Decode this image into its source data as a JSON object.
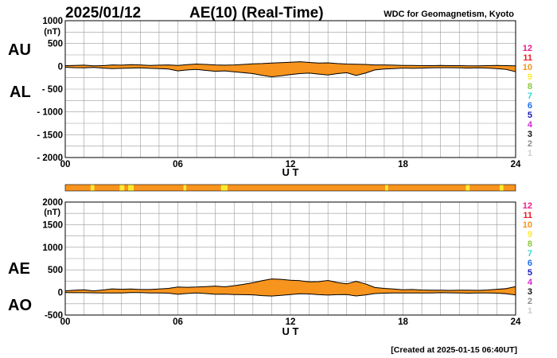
{
  "header": {
    "date": "2025/01/12",
    "title": "AE(10) (Real-Time)",
    "credit": "WDC for Geomagnetism, Kyoto"
  },
  "footer": {
    "created": "[Created at 2025-01-15 06:40UT]"
  },
  "palette": {
    "fill": "#f7941d",
    "grid": "#9a9a9a",
    "line": "#000000",
    "bar_yellow": "#ffe930",
    "bar_orange": "#f7941d"
  },
  "station_count_legend": [
    {
      "label": "12",
      "color": "#ee1d8c"
    },
    {
      "label": "11",
      "color": "#ee1c25"
    },
    {
      "label": "10",
      "color": "#f7941d"
    },
    {
      "label": "9",
      "color": "#ffe930"
    },
    {
      "label": "8",
      "color": "#8dc63f"
    },
    {
      "label": "7",
      "color": "#2ed9d9"
    },
    {
      "label": "6",
      "color": "#1d70ee"
    },
    {
      "label": "5",
      "color": "#1c1ab9"
    },
    {
      "label": "4",
      "color": "#d42ad4"
    },
    {
      "label": "3",
      "color": "#111111"
    },
    {
      "label": "2",
      "color": "#8c8c8c"
    },
    {
      "label": "1",
      "color": "#cfcfcf"
    }
  ],
  "station_bar": {
    "default_count": 10,
    "segments": [
      {
        "start": 1.35,
        "end": 1.55,
        "count": 9
      },
      {
        "start": 2.9,
        "end": 3.15,
        "count": 9
      },
      {
        "start": 3.35,
        "end": 3.65,
        "count": 9
      },
      {
        "start": 6.3,
        "end": 6.45,
        "count": 9
      },
      {
        "start": 8.3,
        "end": 8.65,
        "count": 9
      },
      {
        "start": 17.05,
        "end": 17.2,
        "count": 9
      },
      {
        "start": 21.35,
        "end": 21.55,
        "count": 9
      },
      {
        "start": 23.15,
        "end": 23.35,
        "count": 9
      }
    ]
  },
  "chart_data": [
    {
      "type": "area",
      "panel": "AU-AL",
      "upper_label": "AU",
      "lower_label": "AL",
      "unit": "(nT)",
      "xlabel": "U T",
      "x_ticks": [
        "00",
        "06",
        "12",
        "18",
        "24"
      ],
      "y_ticks": [
        "1000",
        "500",
        "0",
        "- 500",
        "- 1000",
        "- 1500",
        "- 2000"
      ],
      "xlim": [
        0,
        24
      ],
      "ylim": [
        -2000,
        1000
      ],
      "y_tick_values": [
        1000,
        500,
        0,
        -500,
        -1000,
        -1500,
        -2000
      ],
      "x": [
        0,
        0.5,
        1,
        1.5,
        2,
        2.5,
        3,
        3.5,
        4,
        4.5,
        5,
        5.5,
        6,
        6.5,
        7,
        7.5,
        8,
        8.5,
        9,
        9.5,
        10,
        10.5,
        11,
        11.5,
        12,
        12.5,
        13,
        13.5,
        14,
        14.5,
        15,
        15.5,
        16,
        16.5,
        17,
        17.5,
        18,
        18.5,
        19,
        19.5,
        20,
        20.5,
        21,
        21.5,
        22,
        22.5,
        23,
        23.5,
        24
      ],
      "series": [
        {
          "name": "AU",
          "values": [
            15,
            20,
            25,
            10,
            15,
            30,
            25,
            35,
            30,
            20,
            25,
            30,
            20,
            35,
            50,
            40,
            30,
            25,
            30,
            40,
            55,
            60,
            70,
            80,
            90,
            100,
            85,
            70,
            75,
            60,
            50,
            45,
            40,
            30,
            30,
            25,
            20,
            20,
            15,
            15,
            20,
            15,
            15,
            10,
            10,
            15,
            20,
            15,
            10
          ]
        },
        {
          "name": "AL",
          "values": [
            -20,
            -30,
            -35,
            -25,
            -40,
            -50,
            -45,
            -40,
            -35,
            -45,
            -50,
            -60,
            -100,
            -80,
            -70,
            -90,
            -110,
            -100,
            -120,
            -140,
            -160,
            -200,
            -230,
            -210,
            -180,
            -160,
            -150,
            -170,
            -190,
            -160,
            -140,
            -200,
            -150,
            -80,
            -60,
            -50,
            -40,
            -45,
            -40,
            -35,
            -30,
            -30,
            -35,
            -40,
            -35,
            -40,
            -50,
            -70,
            -120
          ]
        }
      ]
    },
    {
      "type": "area",
      "panel": "AE-AO",
      "upper_label": "AE",
      "lower_label": "AO",
      "unit": "(nT)",
      "xlabel": "U T",
      "x_ticks": [
        "00",
        "06",
        "12",
        "18",
        "24"
      ],
      "y_ticks": [
        "2000",
        "1500",
        "1000",
        "500",
        "0",
        "-500"
      ],
      "xlim": [
        0,
        24
      ],
      "ylim": [
        -500,
        2000
      ],
      "y_tick_values": [
        2000,
        1500,
        1000,
        500,
        0,
        -500
      ],
      "x": [
        0,
        0.5,
        1,
        1.5,
        2,
        2.5,
        3,
        3.5,
        4,
        4.5,
        5,
        5.5,
        6,
        6.5,
        7,
        7.5,
        8,
        8.5,
        9,
        9.5,
        10,
        10.5,
        11,
        11.5,
        12,
        12.5,
        13,
        13.5,
        14,
        14.5,
        15,
        15.5,
        16,
        16.5,
        17,
        17.5,
        18,
        18.5,
        19,
        19.5,
        20,
        20.5,
        21,
        21.5,
        22,
        22.5,
        23,
        23.5,
        24
      ],
      "series": [
        {
          "name": "AE",
          "values": [
            35,
            50,
            60,
            35,
            55,
            80,
            70,
            75,
            65,
            65,
            75,
            90,
            120,
            115,
            120,
            130,
            140,
            125,
            150,
            180,
            215,
            260,
            300,
            290,
            270,
            260,
            235,
            240,
            265,
            220,
            190,
            245,
            190,
            110,
            90,
            75,
            60,
            65,
            55,
            50,
            50,
            45,
            50,
            50,
            45,
            55,
            70,
            85,
            130
          ]
        },
        {
          "name": "AO",
          "values": [
            -3,
            -5,
            -5,
            -8,
            -13,
            -10,
            -10,
            -3,
            -3,
            -13,
            -13,
            -15,
            -40,
            -23,
            -10,
            -25,
            -40,
            -38,
            -45,
            -50,
            -53,
            -70,
            -80,
            -65,
            -45,
            -30,
            -33,
            -50,
            -58,
            -50,
            -45,
            -78,
            -55,
            -25,
            -15,
            -13,
            -10,
            -13,
            -13,
            -10,
            -5,
            -8,
            -10,
            -15,
            -13,
            -13,
            -15,
            -28,
            -55
          ]
        }
      ]
    }
  ]
}
